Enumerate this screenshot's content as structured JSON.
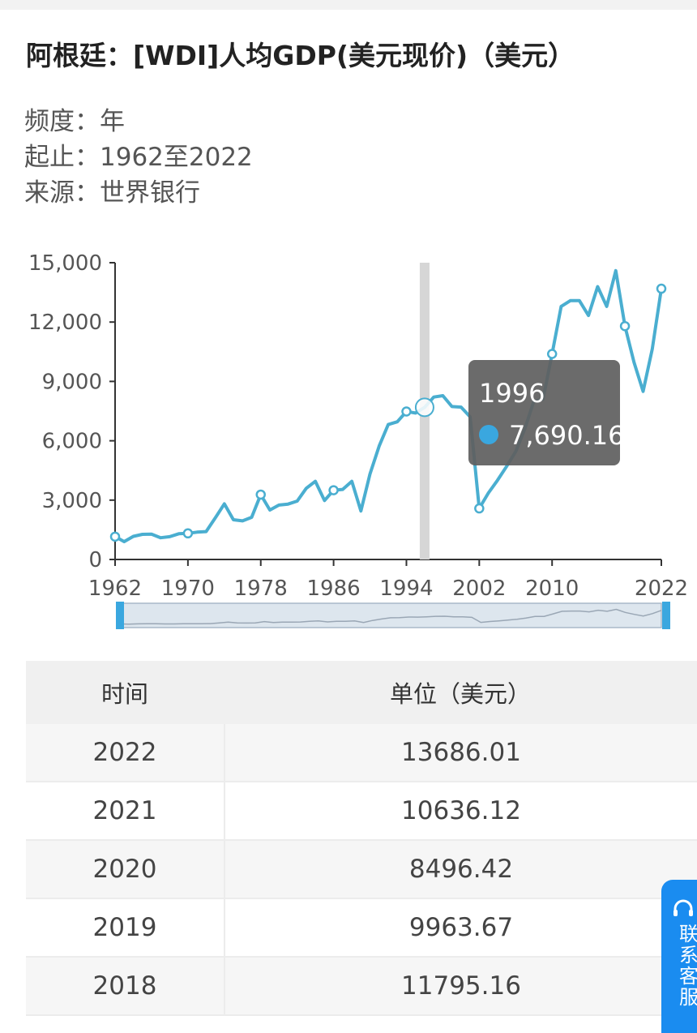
{
  "header": {
    "title": "阿根廷：[WDI]人均GDP(美元现价)（美元）",
    "frequency_label": "频度：",
    "frequency_value": "年",
    "range_label": "起止：",
    "range_value": "1962至2022",
    "source_label": "来源：",
    "source_value": "世界银行"
  },
  "chart_data": {
    "type": "line",
    "x": [
      1962,
      1963,
      1964,
      1965,
      1966,
      1967,
      1968,
      1969,
      1970,
      1971,
      1972,
      1973,
      1974,
      1975,
      1976,
      1977,
      1978,
      1979,
      1980,
      1981,
      1982,
      1983,
      1984,
      1985,
      1986,
      1987,
      1988,
      1989,
      1990,
      1991,
      1992,
      1993,
      1994,
      1995,
      1996,
      1997,
      1998,
      1999,
      2000,
      2001,
      2002,
      2003,
      2004,
      2005,
      2006,
      2007,
      2008,
      2009,
      2010,
      2011,
      2012,
      2013,
      2014,
      2015,
      2016,
      2017,
      2018,
      2019,
      2020,
      2021,
      2022
    ],
    "values": [
      1155,
      900,
      1170,
      1270,
      1280,
      1100,
      1150,
      1300,
      1320,
      1380,
      1410,
      2100,
      2810,
      2010,
      1950,
      2130,
      3280,
      2500,
      2750,
      2800,
      2950,
      3600,
      3950,
      2980,
      3500,
      3540,
      3950,
      2450,
      4320,
      5730,
      6820,
      6960,
      7480,
      7400,
      7690.16,
      8210,
      8280,
      7730,
      7700,
      7210,
      2580,
      3360,
      4000,
      4700,
      5450,
      6600,
      8000,
      8100,
      10390,
      12790,
      13080,
      13080,
      12330,
      13790,
      12790,
      14600,
      11795.16,
      9963.67,
      8496.42,
      10636.12,
      13686.01
    ],
    "markers": [
      1962,
      1970,
      1978,
      1986,
      1994,
      2002,
      2010,
      2018,
      2022
    ],
    "x_ticks": [
      1962,
      1970,
      1978,
      1986,
      1994,
      2002,
      2010,
      2022
    ],
    "y_ticks": [
      "0",
      "3,000",
      "6,000",
      "9,000",
      "12,000",
      "15,000"
    ],
    "ylim": [
      0,
      15000
    ],
    "xlim": [
      1962,
      2022
    ],
    "line_color": "#4aaed0",
    "tooltip": {
      "year": "1996",
      "value": "7,690.16"
    }
  },
  "table": {
    "headers": [
      "时间",
      "单位（美元）"
    ],
    "rows": [
      {
        "year": "2022",
        "value": "13686.01"
      },
      {
        "year": "2021",
        "value": "10636.12"
      },
      {
        "year": "2020",
        "value": "8496.42"
      },
      {
        "year": "2019",
        "value": "9963.67"
      },
      {
        "year": "2018",
        "value": "11795.16"
      }
    ]
  },
  "customer_service": {
    "label": "联系客服",
    "icon": "headset-icon",
    "color": "#1a8cf0"
  }
}
